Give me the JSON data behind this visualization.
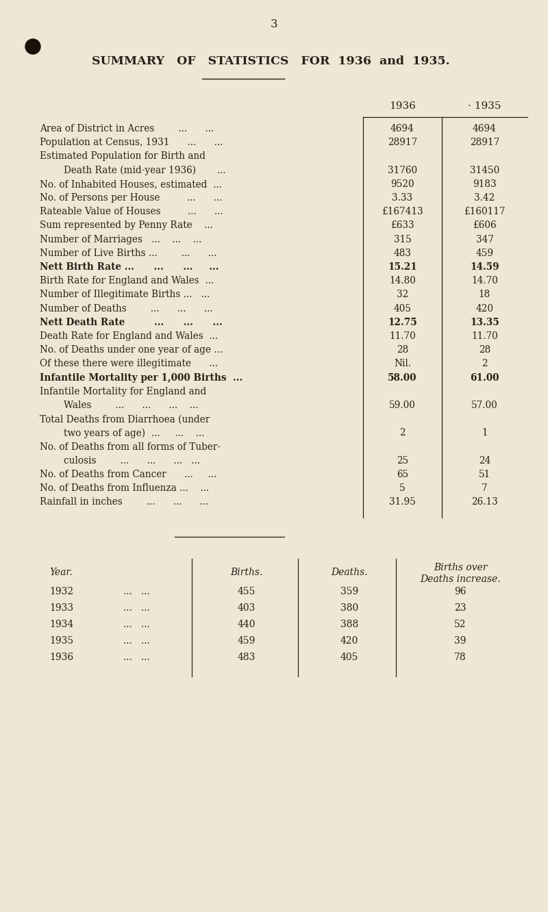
{
  "bg_color": "#ede8d5",
  "text_color": "#2a2018",
  "page_number": "3",
  "title": "SUMMARY   OF   STATISTICS   FOR  1936  and  1935.",
  "col_1936": "1936",
  "col_1935": "· 1935",
  "rows": [
    {
      "label": "Area of District in Acres        ...      ...",
      "v1936": "4694",
      "v1935": "4694",
      "bold": false
    },
    {
      "label": "Population at Census, 1931      ...      ...",
      "v1936": "28917",
      "v1935": "28917",
      "bold": false
    },
    {
      "label": "Estimated Population for Birth and",
      "v1936": "",
      "v1935": "",
      "bold": false
    },
    {
      "label": "        Death Rate (mid-year 1936)       ...",
      "v1936": "31760",
      "v1935": "31450",
      "bold": false
    },
    {
      "label": "No. of Inhabited Houses, estimated  ...",
      "v1936": "9520",
      "v1935": "9183",
      "bold": false
    },
    {
      "label": "No. of Persons per House         ...      ...",
      "v1936": "3.33",
      "v1935": "3.42",
      "bold": false
    },
    {
      "label": "Rateable Value of Houses         ...      ...",
      "v1936": "£167413",
      "v1935": "£160117",
      "bold": false
    },
    {
      "label": "Sum represented by Penny Rate    ...",
      "v1936": "£633",
      "v1935": "£606",
      "bold": false
    },
    {
      "label": "Number of Marriages   ...    ...    ...",
      "v1936": "315",
      "v1935": "347",
      "bold": false
    },
    {
      "label": "Number of Live Births ...        ...      ...",
      "v1936": "483",
      "v1935": "459",
      "bold": false
    },
    {
      "label": "Nett Birth Rate ...      ...      ...     ...",
      "v1936": "15.21",
      "v1935": "14.59",
      "bold": true
    },
    {
      "label": "Birth Rate for England and Wales  ...",
      "v1936": "14.80",
      "v1935": "14.70",
      "bold": false
    },
    {
      "label": "Number of Illegitimate Births ...   ...",
      "v1936": "32",
      "v1935": "18",
      "bold": false
    },
    {
      "label": "Number of Deaths        ...      ...      ...",
      "v1936": "405",
      "v1935": "420",
      "bold": false
    },
    {
      "label": "Nett Death Rate         ...      ...      ...",
      "v1936": "12.75",
      "v1935": "13.35",
      "bold": true
    },
    {
      "label": "Death Rate for England and Wales  ...",
      "v1936": "11.70",
      "v1935": "11.70",
      "bold": false
    },
    {
      "label": "No. of Deaths under one year of age ...",
      "v1936": "28",
      "v1935": "28",
      "bold": false
    },
    {
      "label": "Of these there were illegitimate      ...",
      "v1936": "Nil.",
      "v1935": "2",
      "bold": false
    },
    {
      "label": "Infantile Mortality per 1,000 Births  ...",
      "v1936": "58.00",
      "v1935": "61.00",
      "bold": true
    },
    {
      "label": "Infantile Mortality for England and",
      "v1936": "",
      "v1935": "",
      "bold": false
    },
    {
      "label": "        Wales        ...      ...      ...    ...",
      "v1936": "59.00",
      "v1935": "57.00",
      "bold": false
    },
    {
      "label": "Total Deaths from Diarrhoea (under",
      "v1936": "",
      "v1935": "",
      "bold": false
    },
    {
      "label": "        two years of age)  ...     ...    ...",
      "v1936": "2",
      "v1935": "1",
      "bold": false
    },
    {
      "label": "No. of Deaths from all forms of Tuber-",
      "v1936": "",
      "v1935": "",
      "bold": false
    },
    {
      "label": "        culosis        ...      ...      ...   ...",
      "v1936": "25",
      "v1935": "24",
      "bold": false
    },
    {
      "label": "No. of Deaths from Cancer      ...     ...",
      "v1936": "65",
      "v1935": "51",
      "bold": false
    },
    {
      "label": "No. of Deaths from Influenza ...    ...",
      "v1936": "5",
      "v1935": "7",
      "bold": false
    },
    {
      "label": "Rainfall in inches        ...      ...      ...",
      "v1936": "31.95",
      "v1935": "26.13",
      "bold": false
    }
  ],
  "table2_rows": [
    [
      "1932",
      "455",
      "359",
      "96"
    ],
    [
      "1933",
      "403",
      "380",
      "23"
    ],
    [
      "1934",
      "440",
      "388",
      "52"
    ],
    [
      "1935",
      "459",
      "420",
      "39"
    ],
    [
      "1936",
      "483",
      "405",
      "78"
    ]
  ]
}
